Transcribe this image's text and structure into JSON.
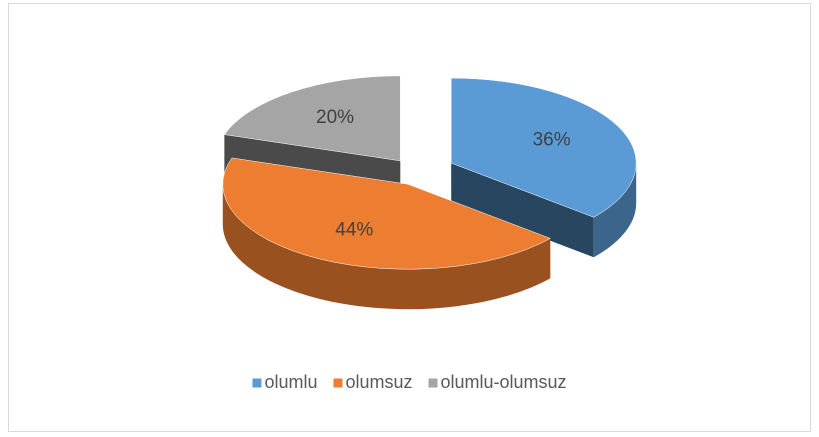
{
  "chart_data": {
    "type": "pie3d",
    "categories": [
      "olumlu",
      "olumsuz",
      "olumlu-olumsuz"
    ],
    "values": [
      36,
      44,
      20
    ],
    "value_labels": [
      "36%",
      "44%",
      "20%"
    ],
    "colors": [
      "#5b9bd5",
      "#ed7d31",
      "#a5a5a5"
    ],
    "legend": "bottom"
  }
}
